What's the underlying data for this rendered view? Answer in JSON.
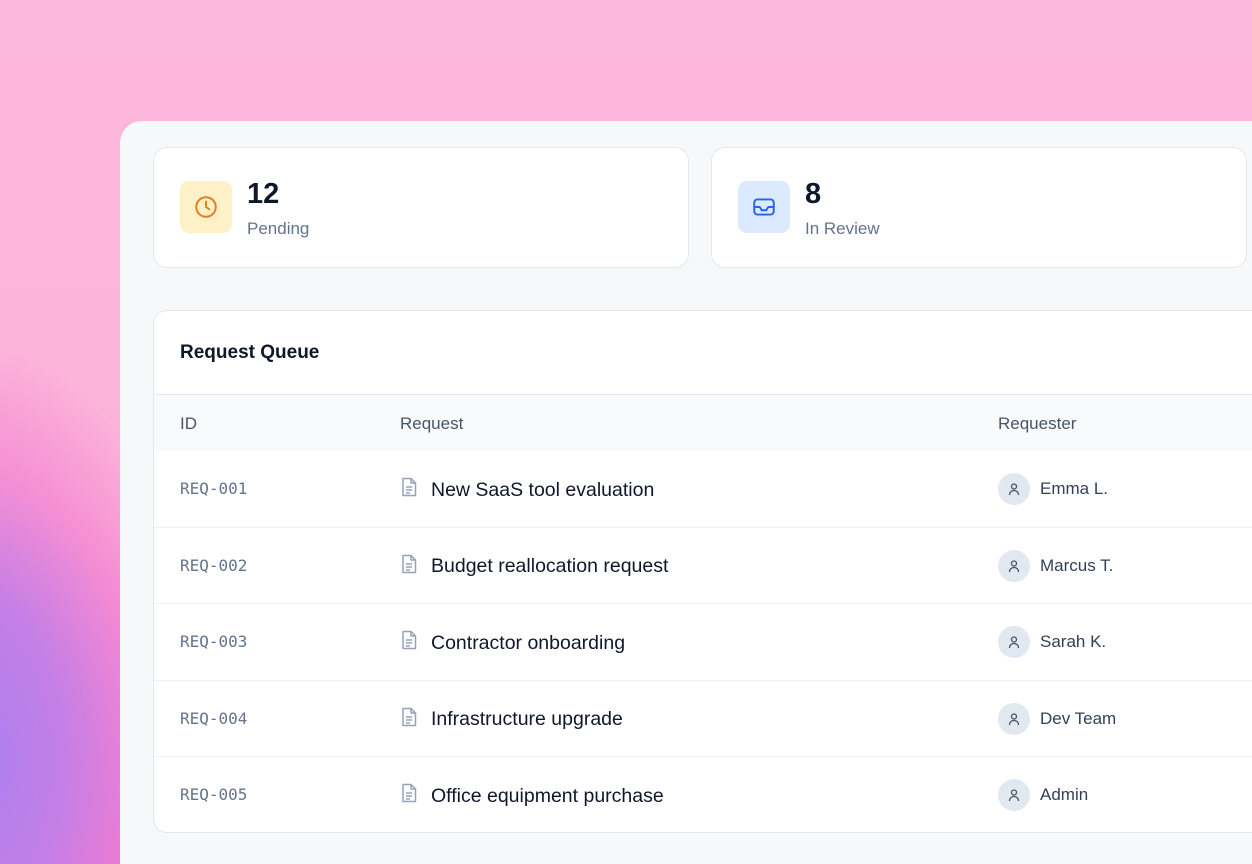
{
  "stats": [
    {
      "value": "12",
      "label": "Pending",
      "icon": "clock-icon",
      "icon_bg": "#fef0c7",
      "icon_color": "#ea7a1e"
    },
    {
      "value": "8",
      "label": "In Review",
      "icon": "inbox-icon",
      "icon_bg": "#dbeafe",
      "icon_color": "#2563eb"
    }
  ],
  "queue": {
    "title": "Request Queue",
    "columns": [
      "ID",
      "Request",
      "Requester"
    ],
    "rows": [
      {
        "id": "REQ-001",
        "request": "New SaaS tool evaluation",
        "requester": "Emma L."
      },
      {
        "id": "REQ-002",
        "request": "Budget reallocation request",
        "requester": "Marcus T."
      },
      {
        "id": "REQ-003",
        "request": "Contractor onboarding",
        "requester": "Sarah K."
      },
      {
        "id": "REQ-004",
        "request": "Infrastructure upgrade",
        "requester": "Dev Team"
      },
      {
        "id": "REQ-005",
        "request": "Office equipment purchase",
        "requester": "Admin"
      }
    ]
  }
}
